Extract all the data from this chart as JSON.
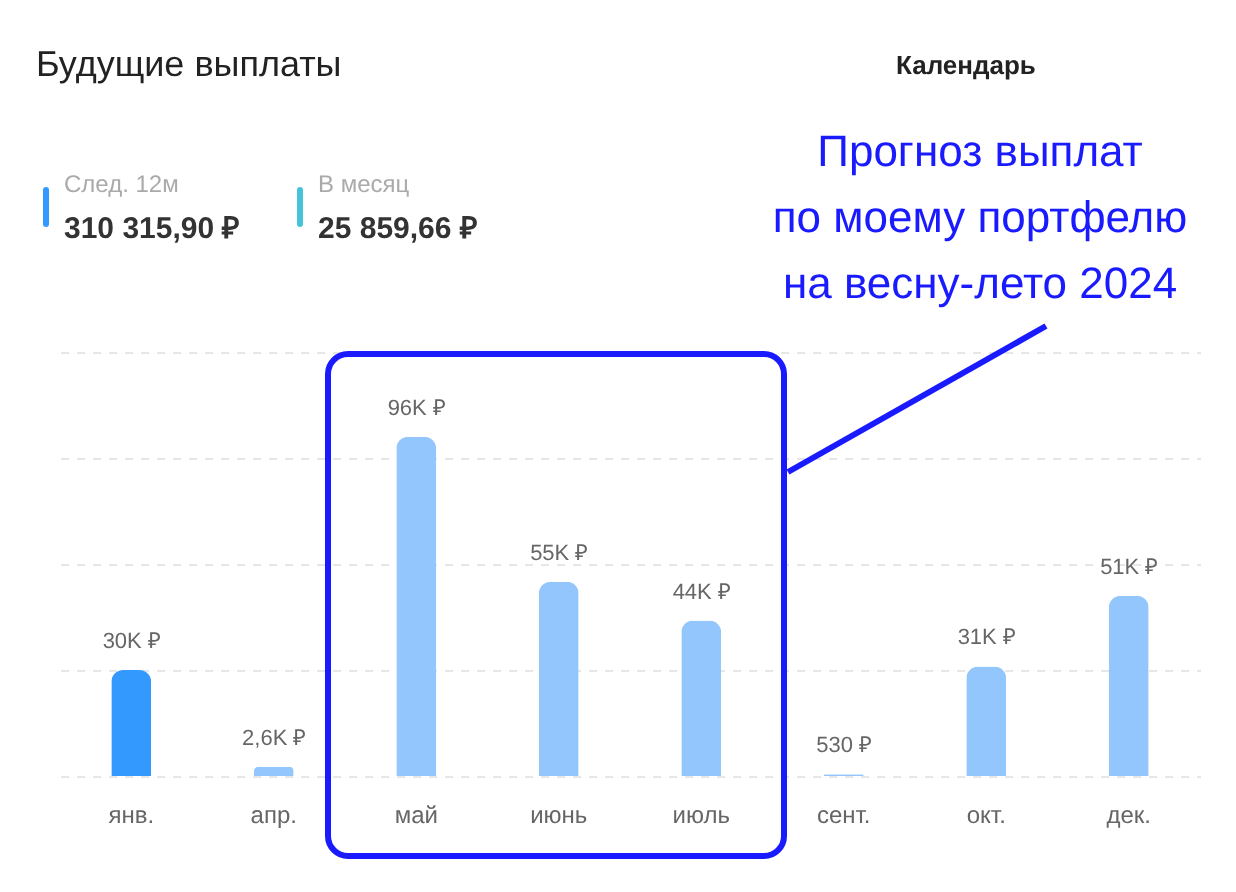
{
  "chart_data": {
    "type": "bar",
    "title": "Будущие выплаты",
    "categories": [
      "янв.",
      "апр.",
      "май",
      "июнь",
      "июль",
      "сент.",
      "окт.",
      "дек."
    ],
    "values": [
      30000,
      2600,
      96000,
      55000,
      44000,
      530,
      31000,
      51000
    ],
    "value_labels": [
      "30K ₽",
      "2,6K ₽",
      "96K ₽",
      "55K ₽",
      "44K ₽",
      "530 ₽",
      "31K ₽",
      "51K ₽"
    ],
    "colors": [
      "#3399ff",
      "#94c6fe",
      "#94c6fe",
      "#94c6fe",
      "#94c6fe",
      "#94c6fe",
      "#94c6fe",
      "#94c6fe"
    ],
    "ylim": [
      0,
      120000
    ],
    "yticks": [
      {
        "value": 0,
        "label": null
      },
      {
        "value": 30000,
        "label": null
      },
      {
        "value": 60000,
        "label": null
      },
      {
        "value": 90000,
        "label": null
      },
      {
        "value": 120000,
        "label": null
      }
    ],
    "grid": "y",
    "tick_labels": "x",
    "annotations": [
      "Календарь",
      "След. 12м",
      "310 315,90 ₽",
      "В месяц",
      "25 859,66 ₽",
      "Прогноз выплат\nпо моему портфелю\nна весну-лето 2024"
    ]
  }
}
